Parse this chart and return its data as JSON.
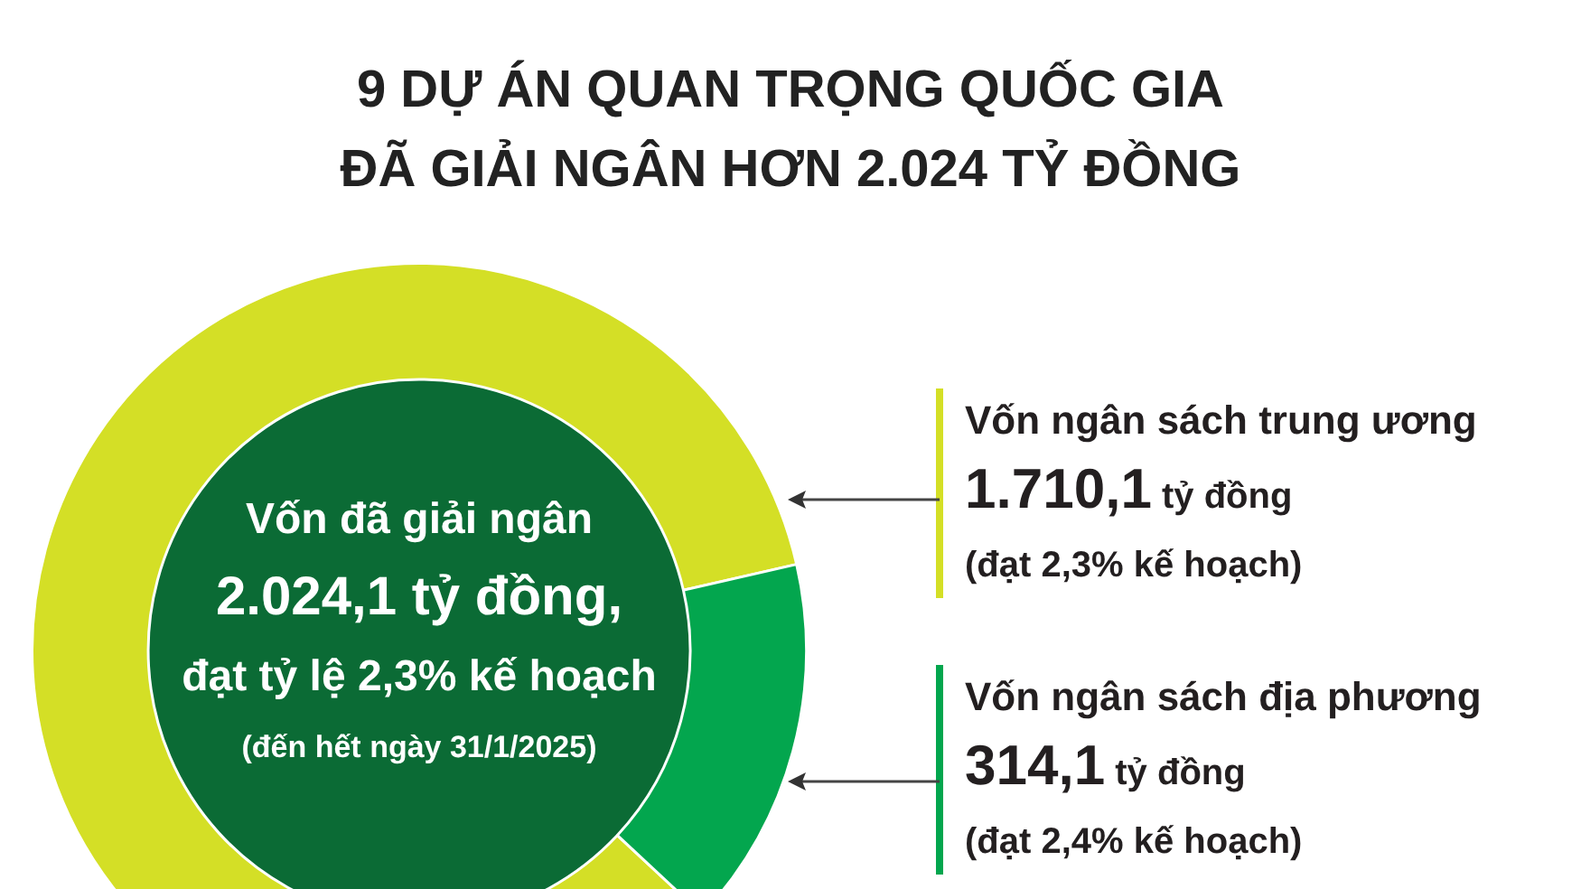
{
  "chart_data": {
    "type": "donut",
    "title": "9 DỰ ÁN QUAN TRỌNG QUỐC GIA\nĐÃ GIẢI NGÂN HƠN 2.024 TỶ ĐỒNG",
    "categories": [
      "Vốn ngân sách trung ương",
      "Vốn ngân sách địa phương"
    ],
    "values": [
      1710.1,
      314.1
    ],
    "colors": [
      "#d4df26",
      "#03a64e"
    ],
    "value_labels": [
      "1.710,1 tỷ đồng",
      "314,1 tỷ đồng"
    ],
    "annotations": [
      "Vốn đã giải ngân",
      "2.024,1 tỷ đồng,",
      "đạt tỷ lệ 2,3% kế hoạch",
      "(đến hết ngày 31/1/2025)",
      {
        "text": "(đạt 2,3% kế hoạch)",
        "x": "Vốn ngân sách trung ương"
      },
      {
        "text": "(đạt 2,4% kế hoạch)",
        "x": "Vốn ngân sách địa phương"
      }
    ],
    "legend": false
  }
}
